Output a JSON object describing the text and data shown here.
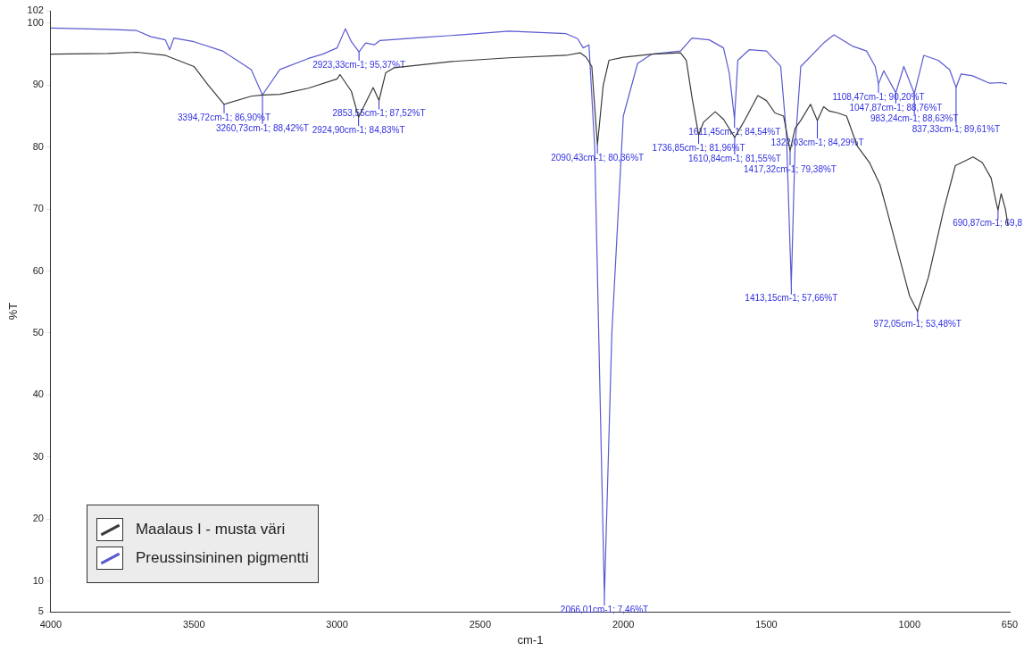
{
  "chart_data": {
    "type": "line",
    "xlabel": "cm-1",
    "ylabel": "%T",
    "xlim": [
      4000,
      650
    ],
    "xticks": [
      4000,
      3500,
      3000,
      2500,
      2000,
      1500,
      1000,
      650
    ],
    "ylim": [
      5,
      102
    ],
    "yticks": [
      5,
      10,
      20,
      30,
      40,
      50,
      60,
      70,
      80,
      90,
      100,
      102
    ],
    "legend": "bottom left",
    "marker": "none",
    "x": [
      4000,
      3800,
      3700,
      3600,
      3500,
      3450,
      3394.72,
      3300,
      3260.73,
      3200,
      3100,
      3000,
      2990,
      2950,
      2924.9,
      2874,
      2853.55,
      2830,
      2800,
      2600,
      2400,
      2200,
      2150,
      2130,
      2110,
      2090.43,
      2070,
      2050,
      2000,
      1900,
      1800,
      1780,
      1760,
      1736.85,
      1720,
      1679,
      1650,
      1610.84,
      1580,
      1530,
      1500,
      1470,
      1440,
      1417.32,
      1400,
      1380,
      1346,
      1322.03,
      1300,
      1280,
      1250,
      1220,
      1183,
      1140,
      1103,
      1080,
      1040,
      1000,
      972.05,
      934,
      880,
      840,
      778,
      746,
      715,
      697,
      690.87,
      680,
      665,
      656
    ],
    "series": [
      {
        "name": "Maalaus I - musta väri",
        "color": "#3a3a3a",
        "values": [
          95.0,
          95.1,
          95.3,
          94.8,
          93.0,
          90.0,
          86.9,
          88.2,
          88.4,
          88.5,
          89.5,
          91.0,
          91.7,
          89.0,
          84.83,
          89.6,
          87.52,
          92.0,
          92.8,
          93.8,
          94.4,
          94.8,
          95.2,
          94.5,
          93.0,
          80.36,
          90.0,
          94.0,
          94.5,
          95.0,
          95.2,
          94.0,
          88.0,
          81.96,
          84.0,
          85.7,
          84.5,
          81.55,
          84.0,
          88.3,
          87.5,
          85.5,
          85.0,
          79.38,
          83.0,
          84.3,
          86.9,
          84.29,
          86.5,
          85.8,
          85.5,
          85.0,
          80.2,
          77.5,
          73.9,
          70.0,
          63.0,
          56.0,
          53.48,
          59.0,
          70.0,
          77.0,
          78.4,
          77.5,
          75.0,
          71.0,
          69.8,
          72.5,
          70.0,
          67.3
        ]
      },
      {
        "name": "Preussinsininen pigmentti",
        "color": "#5a5ad0",
        "x": [
          4000,
          3800,
          3700,
          3650,
          3600,
          3585,
          3570,
          3500,
          3400,
          3350,
          3300,
          3260.73,
          3200,
          3100,
          3050,
          3000,
          2971,
          2950,
          2923.33,
          2900,
          2870,
          2850,
          2700,
          2600,
          2400,
          2200,
          2160,
          2140,
          2120,
          2100,
          2066.01,
          2040,
          2000,
          1950,
          1900,
          1800,
          1760,
          1700,
          1650,
          1630,
          1611.45,
          1600,
          1560,
          1500,
          1450,
          1430,
          1413.15,
          1400,
          1380,
          1300,
          1264,
          1200,
          1150,
          1120,
          1108.47,
          1090,
          1047.87,
          1020,
          983.24,
          950,
          900,
          860,
          837.33,
          820,
          780,
          720,
          680,
          660
        ],
        "values": [
          99.2,
          99.0,
          98.8,
          97.8,
          97.3,
          95.7,
          97.6,
          97.0,
          95.5,
          94.0,
          92.5,
          88.42,
          92.5,
          94.3,
          95.0,
          96.0,
          99.1,
          97.0,
          95.37,
          96.8,
          96.5,
          97.2,
          97.7,
          98.0,
          98.7,
          98.3,
          97.5,
          96.0,
          96.5,
          80.0,
          7.46,
          50.0,
          85.0,
          93.5,
          95.0,
          95.5,
          97.6,
          97.3,
          96.0,
          92.0,
          84.54,
          94.0,
          95.7,
          95.5,
          93.0,
          82.0,
          57.66,
          80.0,
          93.0,
          96.8,
          98.1,
          96.3,
          95.5,
          93.0,
          90.2,
          92.3,
          88.76,
          93.0,
          88.63,
          94.8,
          94.0,
          92.5,
          89.61,
          91.8,
          91.5,
          90.3,
          90.4,
          90.2
        ]
      }
    ],
    "annotations": [
      {
        "text": "3394,72cm-1; 86,90%T",
        "x": 3394.72,
        "y": 86.9
      },
      {
        "text": "3260,73cm-1; 88,42%T",
        "x": 3260.73,
        "y": 88.42
      },
      {
        "text": "2923,33cm-1; 95,37%T",
        "x": 2923.33,
        "y": 95.37
      },
      {
        "text": "2924,90cm-1; 84,83%T",
        "x": 2924.9,
        "y": 84.83
      },
      {
        "text": "2853,55cm-1; 87,52%T",
        "x": 2853.55,
        "y": 87.52
      },
      {
        "text": "2090,43cm-1; 80,36%T",
        "x": 2090.43,
        "y": 80.36
      },
      {
        "text": "2066,01cm-1; 7,46%T",
        "x": 2066.01,
        "y": 7.46
      },
      {
        "text": "1736,85cm-1; 81,96%T",
        "x": 1736.85,
        "y": 81.96
      },
      {
        "text": "1611,45cm-1; 84,54%T",
        "x": 1611.45,
        "y": 84.54
      },
      {
        "text": "1610,84cm-1; 81,55%T",
        "x": 1610.84,
        "y": 81.55
      },
      {
        "text": "1417,32cm-1; 79,38%T",
        "x": 1417.32,
        "y": 79.38
      },
      {
        "text": "1413,15cm-1; 57,66%T",
        "x": 1413.15,
        "y": 57.66
      },
      {
        "text": "1322,03cm-1; 84,29%T",
        "x": 1322.03,
        "y": 84.29
      },
      {
        "text": "1108,47cm-1; 90,20%T",
        "x": 1108.47,
        "y": 90.2
      },
      {
        "text": "1047,87cm-1; 88,76%T",
        "x": 1047.87,
        "y": 88.76
      },
      {
        "text": "983,24cm-1; 88,63%T",
        "x": 983.24,
        "y": 88.63
      },
      {
        "text": "972,05cm-1; 53,48%T",
        "x": 972.05,
        "y": 53.48
      },
      {
        "text": "837,33cm-1; 89,61%T",
        "x": 837.33,
        "y": 89.61
      },
      {
        "text": "690,87cm-1; 69,8",
        "x": 690.87,
        "y": 69.8
      }
    ]
  }
}
